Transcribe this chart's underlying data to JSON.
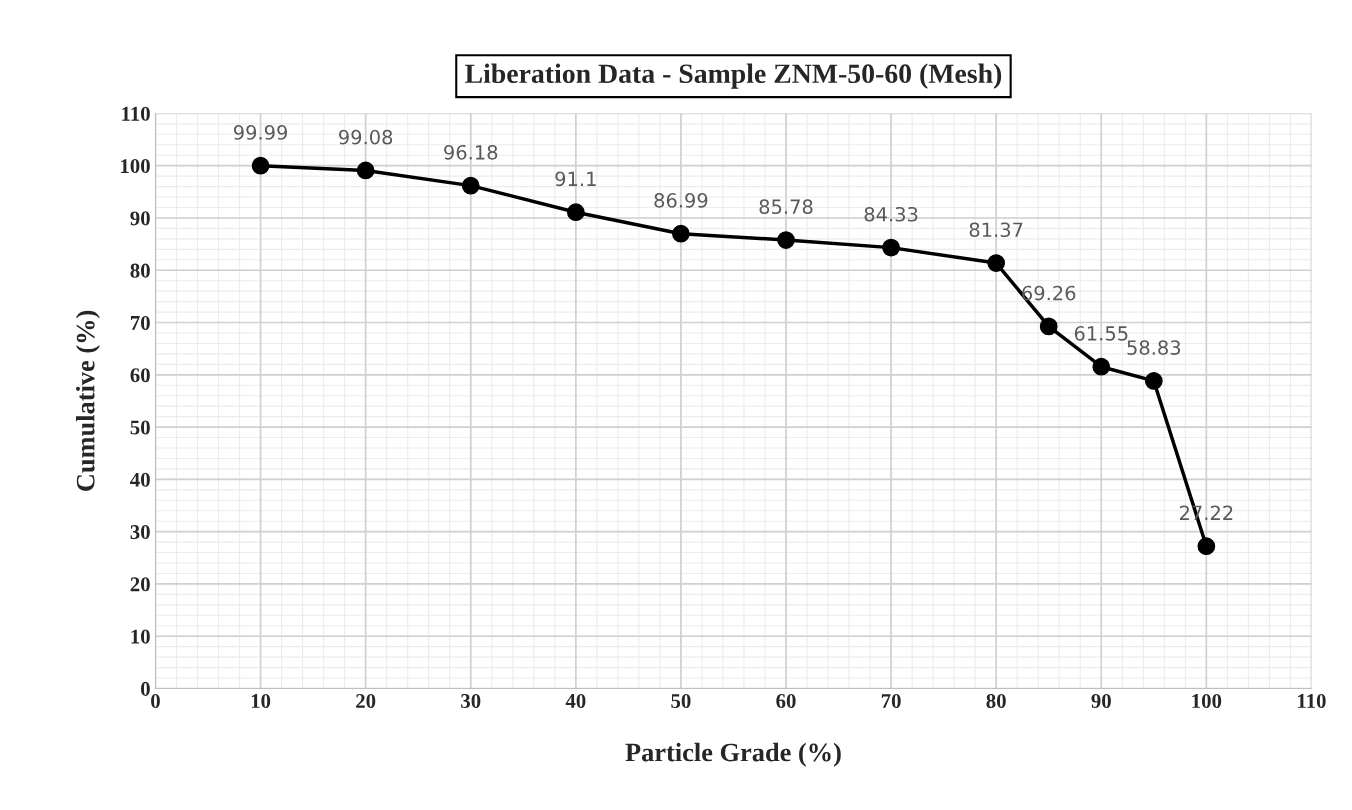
{
  "chart_data": {
    "type": "line",
    "title": "Liberation Data - Sample ZNM-50-60 (Mesh)",
    "xlabel": "Particle Grade (%)",
    "ylabel": "Cumulative (%)",
    "x": [
      10,
      20,
      30,
      40,
      50,
      60,
      70,
      80,
      85,
      90,
      95,
      100
    ],
    "series": [
      {
        "color": "#000000",
        "values": [
          99.99,
          99.08,
          96.18,
          91.1,
          86.99,
          85.78,
          84.33,
          81.37,
          69.26,
          61.55,
          58.83,
          27.22
        ]
      }
    ],
    "xlim": [
      0,
      110
    ],
    "xticks": [
      0,
      10,
      20,
      30,
      40,
      50,
      60,
      70,
      80,
      90,
      100,
      110
    ],
    "ylim": [
      0,
      110
    ],
    "yticks": [
      0,
      10,
      20,
      30,
      40,
      50,
      60,
      70,
      80,
      90,
      100,
      110
    ],
    "grid": true,
    "marker": "circle",
    "line_style": "solid",
    "data_labels": true
  }
}
